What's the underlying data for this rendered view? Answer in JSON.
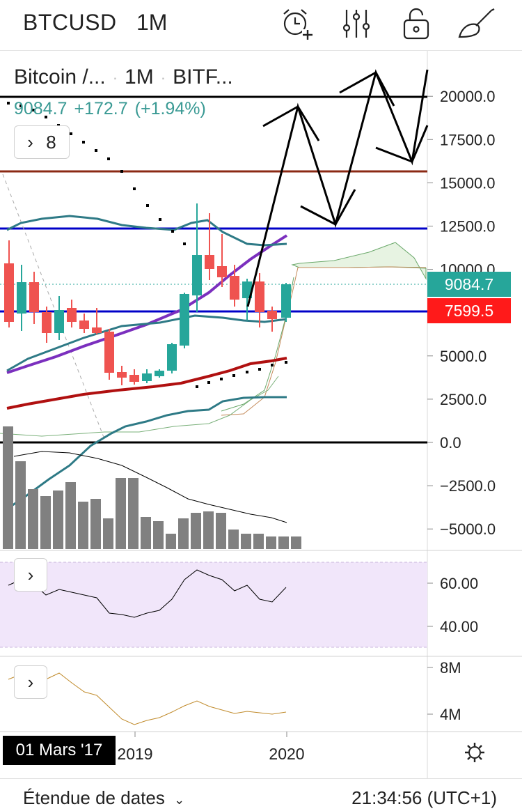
{
  "header": {
    "symbol": "BTCUSD",
    "timeframe": "1M",
    "icons": [
      "alarm-add-icon",
      "indicators-icon",
      "lock-icon",
      "drawing-tools-icon"
    ]
  },
  "legend": {
    "title": "Bitcoin /...",
    "timeframe": "1M",
    "exchange": "BITF...",
    "last_value": "9084.7",
    "change": "+172.7",
    "change_pct": "(+1.94%)",
    "indicators_count": "8"
  },
  "price_axis": {
    "ticks": [
      "20000.0",
      "17500.0",
      "15000.0",
      "12500.0",
      "10000.0",
      "5000.0",
      "2500.0",
      "0.0",
      "−2500.0",
      "−5000.0"
    ],
    "tag_current": "9084.7",
    "tag_current_color": "#26a69a",
    "tag_level": "7599.5",
    "tag_level_color": "#ff1a1a"
  },
  "rsi_pane": {
    "ticks": [
      "60.00",
      "40.00"
    ],
    "band_color": "#f1e6fa"
  },
  "volume_pane": {
    "ticks": [
      "8M",
      "4M"
    ]
  },
  "time_axis": {
    "labels": [
      "2019",
      "2020"
    ],
    "cursor_date": "01 Mars '17"
  },
  "footer": {
    "date_range_label": "Étendue de dates",
    "clock": "21:34:56 (UTC+1)"
  },
  "colors": {
    "up": "#26a69a",
    "down": "#ef5350",
    "blue_level": "#0000c8",
    "brown_level": "#8b2a14",
    "purple_ma": "#7b2fbe",
    "teal_band": "#2e7a86",
    "red_ma": "#b01010",
    "volume_bar": "#808080",
    "osc_line": "#c08a2a"
  }
}
